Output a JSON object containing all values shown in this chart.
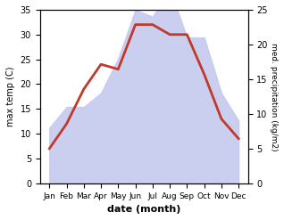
{
  "months": [
    "Jan",
    "Feb",
    "Mar",
    "Apr",
    "May",
    "Jun",
    "Jul",
    "Aug",
    "Sep",
    "Oct",
    "Nov",
    "Dec"
  ],
  "max_temp": [
    7,
    12,
    19,
    24,
    23,
    32,
    32,
    30,
    30,
    22,
    13,
    9
  ],
  "precipitation": [
    8,
    11,
    11,
    13,
    18,
    25,
    24,
    28,
    21,
    21,
    13,
    9
  ],
  "temp_color": "#c0392b",
  "precip_fill_color": "#c5caee",
  "xlabel": "date (month)",
  "ylabel_left": "max temp (C)",
  "ylabel_right": "med. precipitation (kg/m2)",
  "ylim_left": [
    0,
    35
  ],
  "ylim_right": [
    0,
    25
  ],
  "yticks_left": [
    0,
    5,
    10,
    15,
    20,
    25,
    30,
    35
  ],
  "yticks_right": [
    0,
    5,
    10,
    15,
    20,
    25
  ],
  "bg_color": "#ffffff",
  "line_width": 2.0
}
